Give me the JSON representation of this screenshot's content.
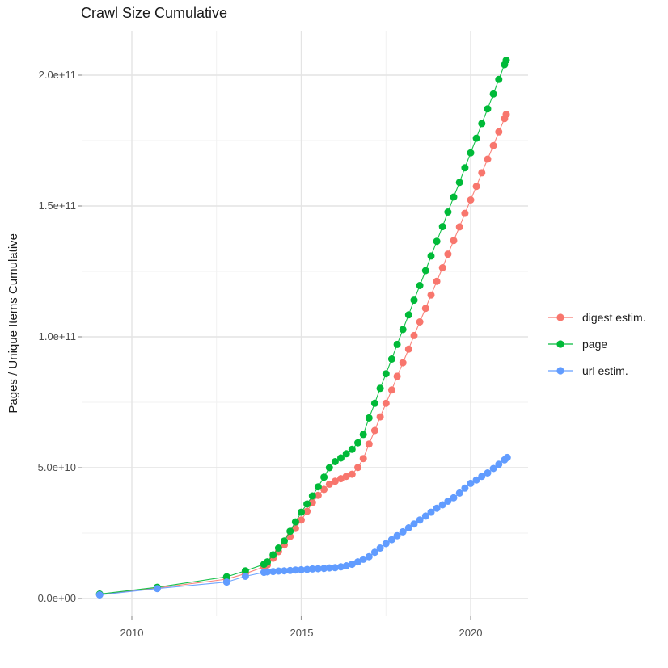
{
  "chart_data": {
    "type": "scatter",
    "title": "Crawl Size Cumulative",
    "ylabel": "Pages / Unique Items Cumulative",
    "xlabel": "",
    "value_unit": "1e9 (y values listed in billions of pages/items)",
    "grid": true,
    "x_axis": {
      "ticks": [
        2010,
        2015,
        2020
      ],
      "tick_labels": [
        "2010",
        "2015",
        "2020"
      ],
      "minor_ticks": [
        2012.5,
        2017.5
      ],
      "range": [
        2008.6,
        2021.8
      ]
    },
    "y_axis": {
      "ticks": [
        0,
        50,
        100,
        150,
        200
      ],
      "tick_labels": [
        "0.0e+00",
        "5.0e+10",
        "1.0e+11",
        "1.5e+11",
        "2.0e+11"
      ],
      "minor_ticks": [
        25,
        75,
        125,
        175
      ],
      "range": [
        -7,
        215
      ]
    },
    "legend": {
      "position": "right",
      "items": [
        "digest estim.",
        "page",
        "url estim."
      ]
    },
    "series": [
      {
        "name": "digest estim.",
        "slug": "digest-estim",
        "color": "#F8766D",
        "points": [
          [
            2009.05,
            1.5
          ],
          [
            2010.75,
            4.0
          ],
          [
            2012.8,
            7.4
          ],
          [
            2013.35,
            9.5
          ],
          [
            2013.9,
            12.1
          ],
          [
            2014.0,
            12.8
          ],
          [
            2014.17,
            15.4
          ],
          [
            2014.33,
            17.9
          ],
          [
            2014.5,
            20.5
          ],
          [
            2014.67,
            23.7
          ],
          [
            2014.83,
            26.8
          ],
          [
            2015.0,
            30.0
          ],
          [
            2015.17,
            33.3
          ],
          [
            2015.33,
            36.7
          ],
          [
            2015.5,
            39.4
          ],
          [
            2015.67,
            41.7
          ],
          [
            2015.83,
            43.7
          ],
          [
            2016.0,
            44.8
          ],
          [
            2016.17,
            45.8
          ],
          [
            2016.33,
            46.7
          ],
          [
            2016.5,
            47.5
          ],
          [
            2016.67,
            50.1
          ],
          [
            2016.83,
            53.5
          ],
          [
            2017.0,
            59.0
          ],
          [
            2017.17,
            64.2
          ],
          [
            2017.33,
            69.4
          ],
          [
            2017.5,
            74.6
          ],
          [
            2017.67,
            79.7
          ],
          [
            2017.83,
            84.9
          ],
          [
            2018.0,
            90.1
          ],
          [
            2018.17,
            95.3
          ],
          [
            2018.33,
            100.5
          ],
          [
            2018.5,
            105.7
          ],
          [
            2018.67,
            110.9
          ],
          [
            2018.83,
            116.0
          ],
          [
            2019.0,
            121.2
          ],
          [
            2019.17,
            126.4
          ],
          [
            2019.33,
            131.6
          ],
          [
            2019.5,
            136.8
          ],
          [
            2019.67,
            142.0
          ],
          [
            2019.83,
            147.2
          ],
          [
            2020.0,
            152.3
          ],
          [
            2020.17,
            157.5
          ],
          [
            2020.33,
            162.7
          ],
          [
            2020.5,
            167.9
          ],
          [
            2020.67,
            173.1
          ],
          [
            2020.83,
            178.3
          ],
          [
            2021.0,
            183.4
          ],
          [
            2021.05,
            185.0
          ]
        ]
      },
      {
        "name": "page",
        "slug": "page",
        "color": "#00BA38",
        "points": [
          [
            2009.05,
            1.7
          ],
          [
            2010.75,
            4.3
          ],
          [
            2012.8,
            8.3
          ],
          [
            2013.35,
            10.6
          ],
          [
            2013.9,
            13.1
          ],
          [
            2014.0,
            14.0
          ],
          [
            2014.17,
            16.7
          ],
          [
            2014.33,
            19.3
          ],
          [
            2014.5,
            22.0
          ],
          [
            2014.67,
            25.7
          ],
          [
            2014.83,
            29.3
          ],
          [
            2015.0,
            33.0
          ],
          [
            2015.17,
            36.1
          ],
          [
            2015.33,
            39.2
          ],
          [
            2015.5,
            42.7
          ],
          [
            2015.67,
            46.4
          ],
          [
            2015.83,
            50.0
          ],
          [
            2016.0,
            52.3
          ],
          [
            2016.17,
            53.7
          ],
          [
            2016.33,
            55.3
          ],
          [
            2016.5,
            57.0
          ],
          [
            2016.67,
            59.5
          ],
          [
            2016.83,
            62.7
          ],
          [
            2017.0,
            69.0
          ],
          [
            2017.17,
            74.6
          ],
          [
            2017.33,
            80.3
          ],
          [
            2017.5,
            85.9
          ],
          [
            2017.67,
            91.5
          ],
          [
            2017.83,
            97.1
          ],
          [
            2018.0,
            102.8
          ],
          [
            2018.17,
            108.4
          ],
          [
            2018.33,
            114.0
          ],
          [
            2018.5,
            119.6
          ],
          [
            2018.67,
            125.3
          ],
          [
            2018.83,
            130.9
          ],
          [
            2019.0,
            136.5
          ],
          [
            2019.17,
            142.1
          ],
          [
            2019.33,
            147.7
          ],
          [
            2019.5,
            153.4
          ],
          [
            2019.67,
            159.0
          ],
          [
            2019.83,
            164.6
          ],
          [
            2020.0,
            170.3
          ],
          [
            2020.17,
            175.9
          ],
          [
            2020.33,
            181.5
          ],
          [
            2020.5,
            187.1
          ],
          [
            2020.67,
            192.8
          ],
          [
            2020.83,
            198.4
          ],
          [
            2021.0,
            204.0
          ],
          [
            2021.05,
            205.7
          ]
        ]
      },
      {
        "name": "url estim.",
        "slug": "url-estim",
        "color": "#619CFF",
        "points": [
          [
            2009.05,
            1.4
          ],
          [
            2010.75,
            3.8
          ],
          [
            2012.8,
            6.3
          ],
          [
            2013.35,
            8.5
          ],
          [
            2013.9,
            10.0
          ],
          [
            2014.0,
            10.2
          ],
          [
            2014.17,
            10.3
          ],
          [
            2014.33,
            10.5
          ],
          [
            2014.5,
            10.6
          ],
          [
            2014.67,
            10.7
          ],
          [
            2014.83,
            10.9
          ],
          [
            2015.0,
            11.0
          ],
          [
            2015.17,
            11.1
          ],
          [
            2015.33,
            11.3
          ],
          [
            2015.5,
            11.4
          ],
          [
            2015.67,
            11.5
          ],
          [
            2015.83,
            11.7
          ],
          [
            2016.0,
            11.8
          ],
          [
            2016.17,
            12.1
          ],
          [
            2016.33,
            12.5
          ],
          [
            2016.5,
            13.1
          ],
          [
            2016.67,
            14.0
          ],
          [
            2016.83,
            15.0
          ],
          [
            2017.0,
            16.0
          ],
          [
            2017.17,
            17.7
          ],
          [
            2017.33,
            19.3
          ],
          [
            2017.5,
            21.0
          ],
          [
            2017.67,
            22.5
          ],
          [
            2017.83,
            24.0
          ],
          [
            2018.0,
            25.5
          ],
          [
            2018.17,
            27.0
          ],
          [
            2018.33,
            28.5
          ],
          [
            2018.5,
            30.0
          ],
          [
            2018.67,
            31.5
          ],
          [
            2018.83,
            33.0
          ],
          [
            2019.0,
            34.5
          ],
          [
            2019.17,
            35.8
          ],
          [
            2019.33,
            37.2
          ],
          [
            2019.5,
            38.5
          ],
          [
            2019.67,
            40.3
          ],
          [
            2019.83,
            42.2
          ],
          [
            2020.0,
            44.0
          ],
          [
            2020.17,
            45.3
          ],
          [
            2020.33,
            46.7
          ],
          [
            2020.5,
            48.0
          ],
          [
            2020.67,
            49.7
          ],
          [
            2020.83,
            51.3
          ],
          [
            2021.0,
            53.0
          ],
          [
            2021.08,
            53.9
          ]
        ]
      }
    ],
    "style": {
      "major_grid_color": "#e4e4e4",
      "minor_grid_color": "#f1f1f1",
      "tick_mark_color": "#999999",
      "tick_label_color": "#4d4d4d",
      "text_color": "#1a1a1a",
      "background": "#ffffff"
    }
  }
}
